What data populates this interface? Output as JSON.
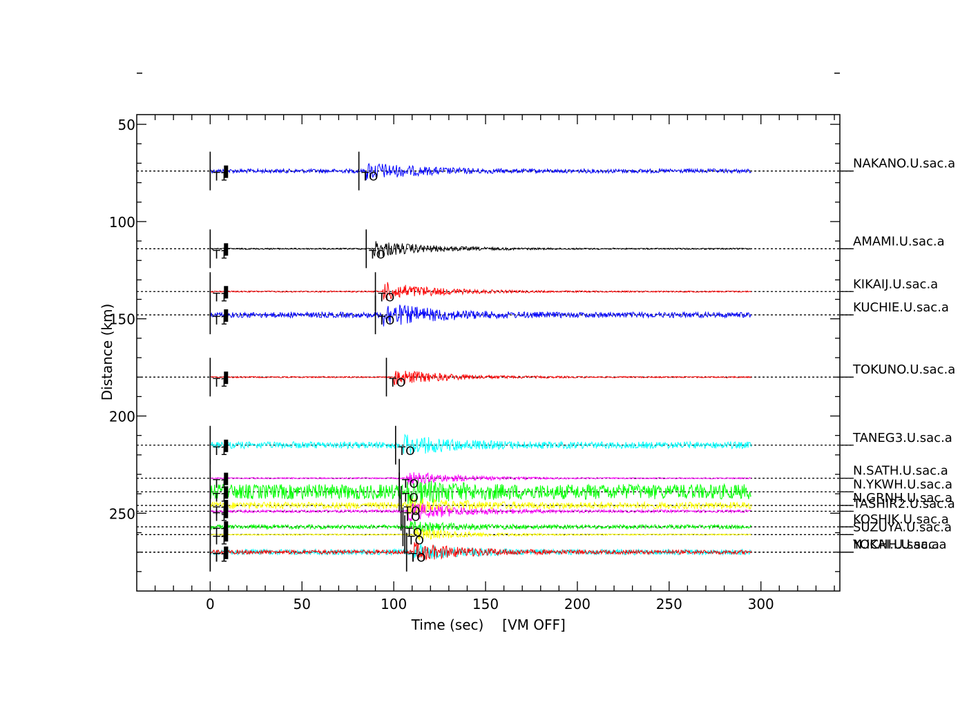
{
  "chart_data": {
    "type": "line",
    "xlabel": "Time (sec)",
    "x_note": "[VM OFF]",
    "ylabel": "Distance (km)",
    "xlim": [
      -40,
      343
    ],
    "ylim": [
      45,
      290
    ],
    "xticks": [
      0,
      50,
      100,
      150,
      200,
      250,
      300
    ],
    "yticks": [
      50,
      100,
      150,
      200,
      250
    ],
    "pick_label_T1": "T1",
    "pick_label_T0": "TO",
    "series": [
      {
        "name": "NAKANO.U.sac.a",
        "distance": 74,
        "color": "#0000ff",
        "amp": 3,
        "burst_amp": 12,
        "t0": 85,
        "t_end": 295
      },
      {
        "name": "AMAMI.U.sac.a",
        "distance": 114,
        "color": "#000000",
        "amp": 1,
        "burst_amp": 13,
        "t0": 89,
        "t_end": 295
      },
      {
        "name": "KIKAIJ.U.sac.a",
        "distance": 136,
        "color": "#ff0000",
        "amp": 1,
        "burst_amp": 14,
        "t0": 94,
        "t_end": 295
      },
      {
        "name": "KUCHIE.U.sac.a",
        "distance": 148,
        "color": "#0000ff",
        "amp": 4,
        "burst_amp": 16,
        "t0": 94,
        "t_end": 295
      },
      {
        "name": "TOKUNO.U.sac.a",
        "distance": 180,
        "color": "#ff0000",
        "amp": 1,
        "burst_amp": 12,
        "t0": 100,
        "t_end": 295
      },
      {
        "name": "TANEG3.U.sac.a",
        "distance": 215,
        "color": "#00ffff",
        "amp": 5,
        "burst_amp": 12,
        "t0": 105,
        "t_end": 295
      },
      {
        "name": "N.SATH.U.sac.a",
        "distance": 232,
        "color": "#ff00ff",
        "amp": 1,
        "burst_amp": 10,
        "t0": 107,
        "t_end": 295
      },
      {
        "name": "N.YKWH.U.sac.a",
        "distance": 239,
        "color": "#00ff00",
        "amp": 11,
        "burst_amp": 11,
        "t0": 107,
        "t_end": 295
      },
      {
        "name": "N.GRNH.U.sac.a",
        "distance": 246,
        "color": "#ffff00",
        "amp": 5,
        "burst_amp": 9,
        "t0": 108,
        "t_end": 295
      },
      {
        "name": "TASHIR2.U.sac.a",
        "distance": 249,
        "color": "#ff00ff",
        "amp": 2,
        "burst_amp": 13,
        "t0": 108,
        "t_end": 295
      },
      {
        "name": "KOSHIK.U.sac.a",
        "distance": 257,
        "color": "#00ff00",
        "amp": 3,
        "burst_amp": 6,
        "t0": 109,
        "t_end": 295
      },
      {
        "name": "SUZUYA.U.sac.a",
        "distance": 261,
        "color": "#ffff00",
        "amp": 1,
        "burst_amp": 10,
        "t0": 110,
        "t_end": 295
      },
      {
        "name": "N.ICHH.U.sac.a",
        "distance": 270,
        "color": "#00ffff",
        "amp": 4,
        "burst_amp": 10,
        "t0": 111,
        "t_end": 295
      },
      {
        "name": "YOKAI.U.sac.a",
        "distance": 270,
        "color": "#ff0000",
        "amp": 3,
        "burst_amp": 12,
        "t0": 111,
        "t_end": 295
      }
    ]
  }
}
